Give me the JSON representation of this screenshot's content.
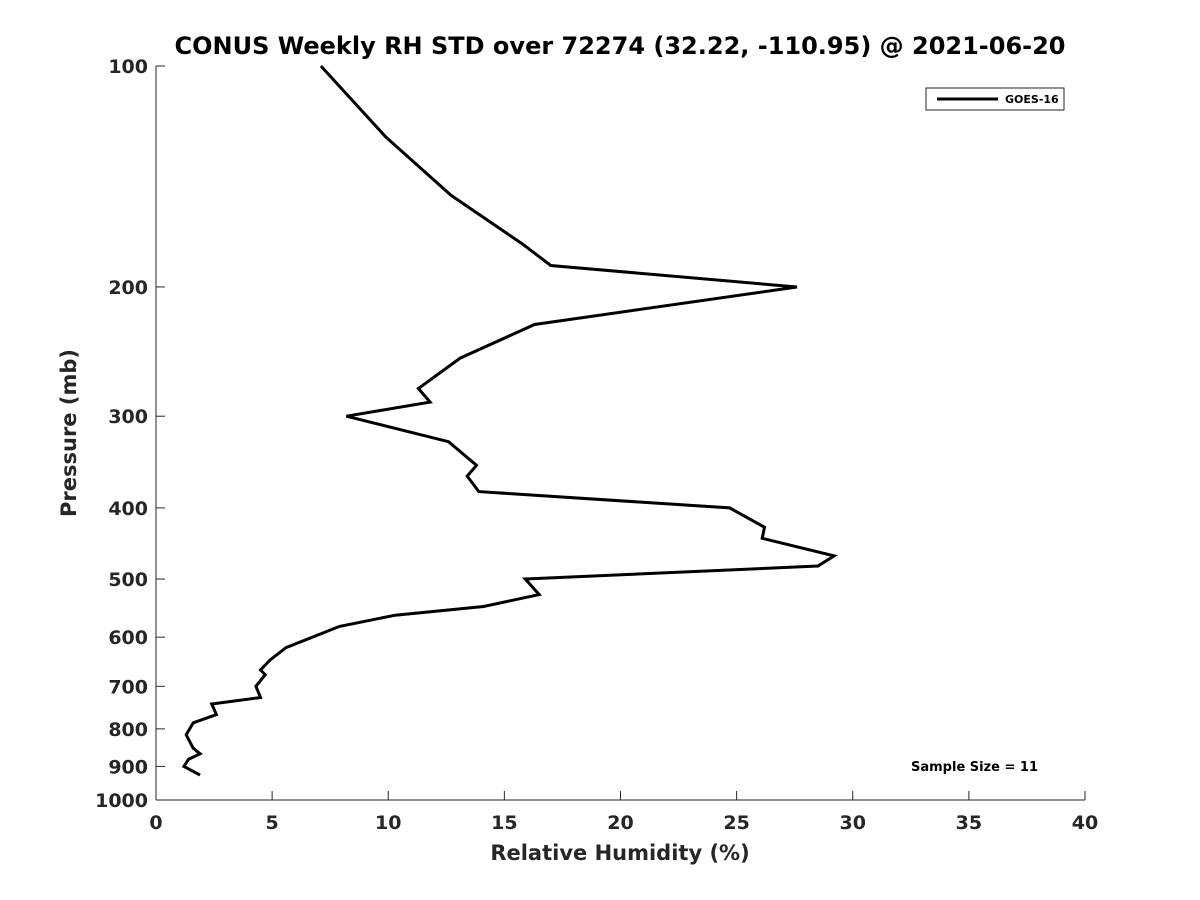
{
  "chart_data": {
    "type": "line",
    "title": "CONUS Weekly RH STD over 72274 (32.22, -110.95) @ 2021-06-20",
    "xlabel": "Relative Humidity (%)",
    "ylabel": "Pressure (mb)",
    "xlim": [
      0,
      40
    ],
    "ylim": [
      100,
      1000
    ],
    "yscale": "log",
    "y_reversed": true,
    "xticks": [
      0,
      5,
      10,
      15,
      20,
      25,
      30,
      35,
      40
    ],
    "yticks": [
      100,
      200,
      300,
      400,
      500,
      600,
      700,
      800,
      900,
      1000
    ],
    "grid": false,
    "legend_position": "top-right",
    "annotation": "Sample Size = 11",
    "series": [
      {
        "name": "GOES-16",
        "color": "#000000",
        "points": [
          {
            "x": 7.1,
            "y": 100
          },
          {
            "x": 9.9,
            "y": 125
          },
          {
            "x": 12.7,
            "y": 150
          },
          {
            "x": 15.8,
            "y": 175
          },
          {
            "x": 17.0,
            "y": 187
          },
          {
            "x": 27.6,
            "y": 200
          },
          {
            "x": 16.3,
            "y": 225
          },
          {
            "x": 13.1,
            "y": 250
          },
          {
            "x": 11.3,
            "y": 275
          },
          {
            "x": 11.8,
            "y": 287
          },
          {
            "x": 8.2,
            "y": 300
          },
          {
            "x": 12.6,
            "y": 325
          },
          {
            "x": 13.8,
            "y": 350
          },
          {
            "x": 13.4,
            "y": 362
          },
          {
            "x": 13.9,
            "y": 380
          },
          {
            "x": 24.7,
            "y": 400
          },
          {
            "x": 26.2,
            "y": 425
          },
          {
            "x": 26.1,
            "y": 440
          },
          {
            "x": 29.2,
            "y": 465
          },
          {
            "x": 28.5,
            "y": 480
          },
          {
            "x": 15.9,
            "y": 500
          },
          {
            "x": 16.5,
            "y": 525
          },
          {
            "x": 14.1,
            "y": 545
          },
          {
            "x": 10.3,
            "y": 560
          },
          {
            "x": 7.9,
            "y": 580
          },
          {
            "x": 5.6,
            "y": 620
          },
          {
            "x": 4.9,
            "y": 645
          },
          {
            "x": 4.5,
            "y": 665
          },
          {
            "x": 4.7,
            "y": 675
          },
          {
            "x": 4.3,
            "y": 700
          },
          {
            "x": 4.5,
            "y": 725
          },
          {
            "x": 2.4,
            "y": 740
          },
          {
            "x": 2.6,
            "y": 765
          },
          {
            "x": 1.6,
            "y": 785
          },
          {
            "x": 1.3,
            "y": 815
          },
          {
            "x": 1.6,
            "y": 850
          },
          {
            "x": 1.9,
            "y": 865
          },
          {
            "x": 1.4,
            "y": 880
          },
          {
            "x": 1.2,
            "y": 900
          },
          {
            "x": 1.9,
            "y": 925
          }
        ]
      }
    ]
  }
}
